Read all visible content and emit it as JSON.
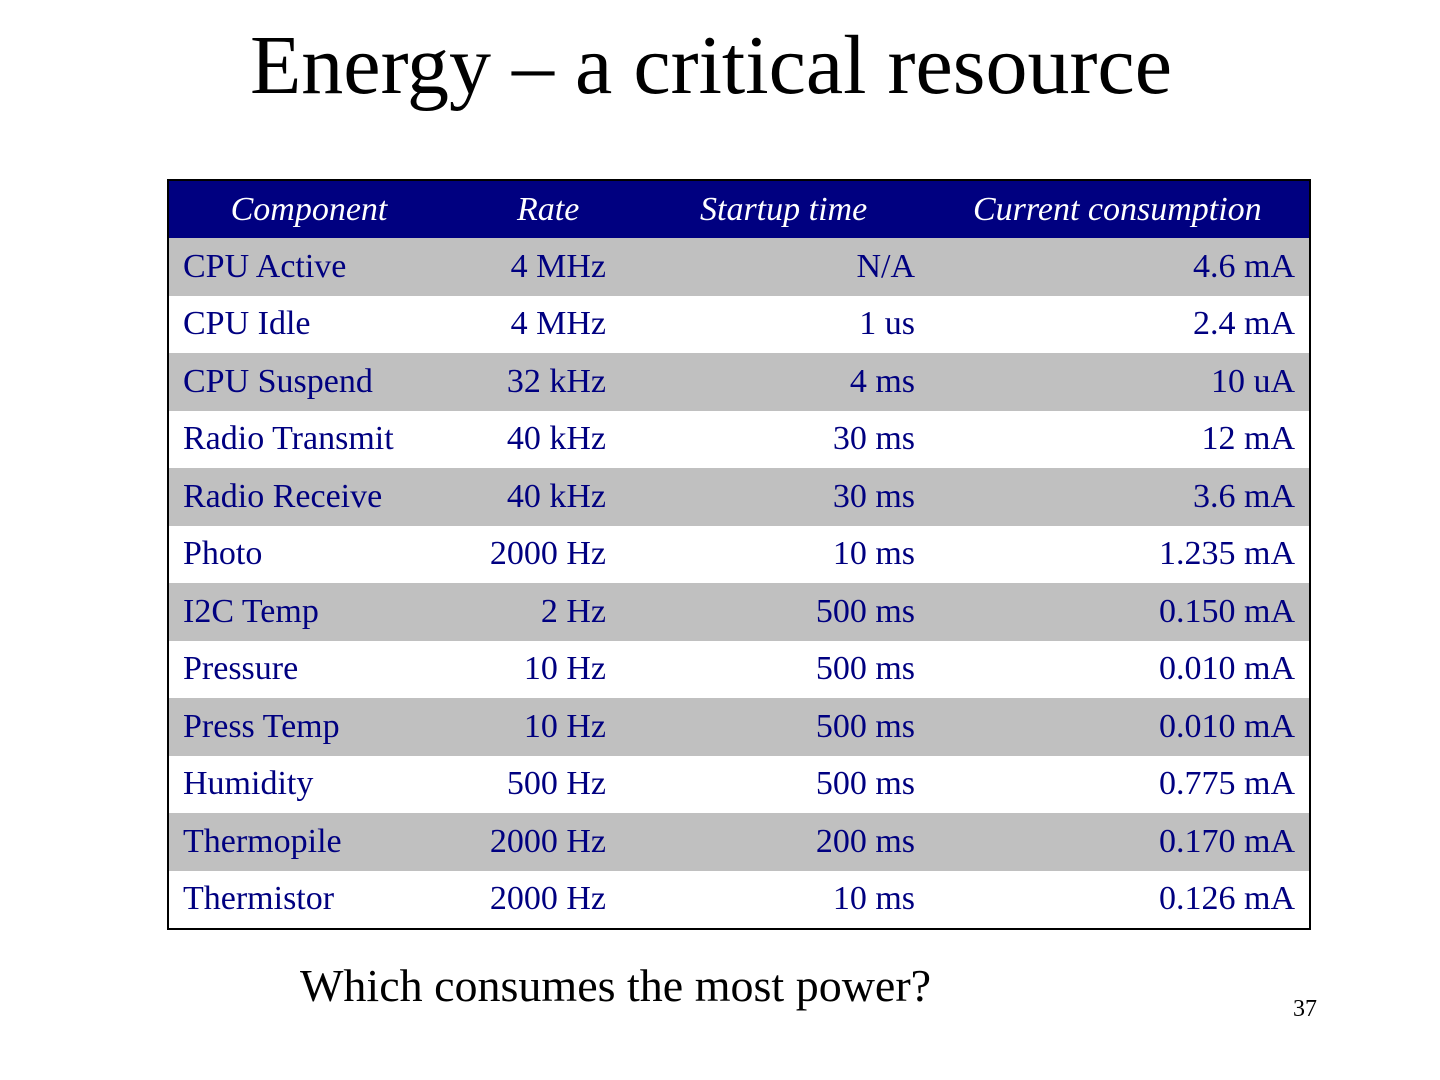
{
  "slide": {
    "title": "Energy – a critical resource",
    "question": "Which consumes the most power?",
    "page_number": "37"
  },
  "table": {
    "headers": [
      "Component",
      "Rate",
      "Startup time",
      "Current consumption"
    ],
    "rows": [
      [
        "CPU Active",
        "4 MHz",
        "N/A",
        "4.6 mA"
      ],
      [
        "CPU Idle",
        "4 MHz",
        "1 us",
        "2.4 mA"
      ],
      [
        "CPU Suspend",
        "32 kHz",
        "4 ms",
        "10 uA"
      ],
      [
        "Radio Transmit",
        "40 kHz",
        "30 ms",
        "12 mA"
      ],
      [
        "Radio Receive",
        "40 kHz",
        "30 ms",
        "3.6 mA"
      ],
      [
        "Photo",
        "2000 Hz",
        "10 ms",
        "1.235 mA"
      ],
      [
        "I2C Temp",
        "2 Hz",
        "500 ms",
        "0.150 mA"
      ],
      [
        "Pressure",
        "10 Hz",
        "500 ms",
        "0.010 mA"
      ],
      [
        "Press Temp",
        "10 Hz",
        "500 ms",
        "0.010 mA"
      ],
      [
        "Humidity",
        "500 Hz",
        "500 ms",
        "0.775 mA"
      ],
      [
        "Thermopile",
        "2000 Hz",
        "200 ms",
        "0.170 mA"
      ],
      [
        "Thermistor",
        "2000 Hz",
        "10 ms",
        "0.126 mA"
      ]
    ]
  },
  "colors": {
    "header_bg": "#000080",
    "header_text": "#ffffff",
    "row_shaded": "#c0c0c0",
    "row_plain": "#ffffff",
    "cell_text": "#000080"
  }
}
